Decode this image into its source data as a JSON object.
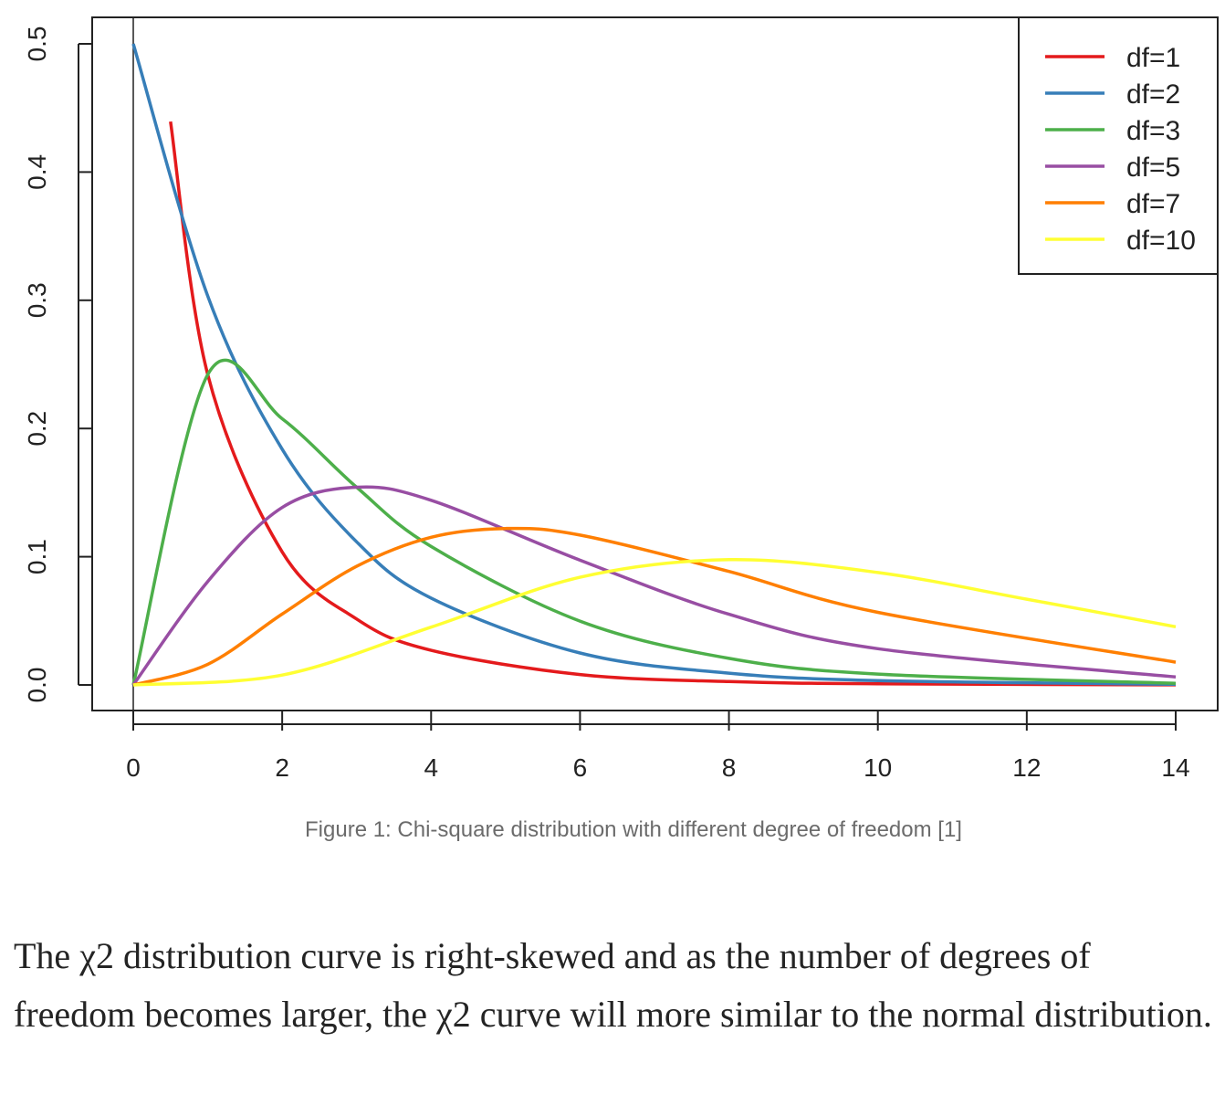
{
  "chart_data": {
    "type": "line",
    "title": "",
    "xlabel": "",
    "ylabel": "",
    "xlim": [
      0,
      14
    ],
    "ylim": [
      0,
      0.5
    ],
    "x_ticks": [
      "0",
      "2",
      "4",
      "6",
      "8",
      "10",
      "12",
      "14"
    ],
    "y_ticks": [
      "0.0",
      "0.1",
      "0.2",
      "0.3",
      "0.4",
      "0.5"
    ],
    "legend_position": "top-right",
    "grid": false,
    "series": [
      {
        "name": "df=1",
        "df": 1,
        "color": "#e41a1c",
        "x": [
          0.5,
          1,
          2,
          3,
          4,
          6,
          8,
          10,
          14
        ],
        "y": [
          0.4394,
          0.242,
          0.1038,
          0.0514,
          0.027,
          0.0081,
          0.0026,
          0.0009,
          0.0001
        ]
      },
      {
        "name": "df=2",
        "df": 2,
        "color": "#377eb8",
        "x": [
          0,
          1,
          2,
          3,
          4,
          6,
          8,
          10,
          14
        ],
        "y": [
          0.5,
          0.3033,
          0.1839,
          0.1116,
          0.0677,
          0.0249,
          0.0092,
          0.0034,
          0.0005
        ]
      },
      {
        "name": "df=3",
        "df": 3,
        "color": "#4daf4a",
        "x": [
          0,
          1,
          2,
          3,
          4,
          6,
          8,
          10,
          14
        ],
        "y": [
          0,
          0.242,
          0.2076,
          0.1542,
          0.108,
          0.0498,
          0.0207,
          0.0085,
          0.0013
        ]
      },
      {
        "name": "df=5",
        "df": 5,
        "color": "#984ea3",
        "x": [
          0,
          1,
          2,
          3,
          4,
          6,
          8,
          10,
          14
        ],
        "y": [
          0,
          0.0807,
          0.1384,
          0.1542,
          0.144,
          0.0973,
          0.0551,
          0.0283,
          0.0062
        ]
      },
      {
        "name": "df=7",
        "df": 7,
        "color": "#ff7f00",
        "x": [
          0,
          1,
          2,
          3,
          4,
          5,
          6,
          8,
          10,
          14
        ],
        "y": [
          0,
          0.0161,
          0.0553,
          0.0925,
          0.1152,
          0.122,
          0.1169,
          0.0885,
          0.0566,
          0.0177
        ]
      },
      {
        "name": "df=10",
        "df": 10,
        "color": "#ffff33",
        "x": [
          0,
          2,
          4,
          6,
          8,
          10,
          12,
          14
        ],
        "y": [
          0,
          0.0077,
          0.0451,
          0.084,
          0.0977,
          0.0877,
          0.0669,
          0.0454
        ]
      }
    ]
  },
  "caption": "Figure 1: Chi-square distribution with different degree of freedom [1]",
  "paragraph": "The χ2 distribution curve is right-skewed and as the number of degrees of freedom becomes larger, the χ2 curve will more similar to the normal distribution."
}
